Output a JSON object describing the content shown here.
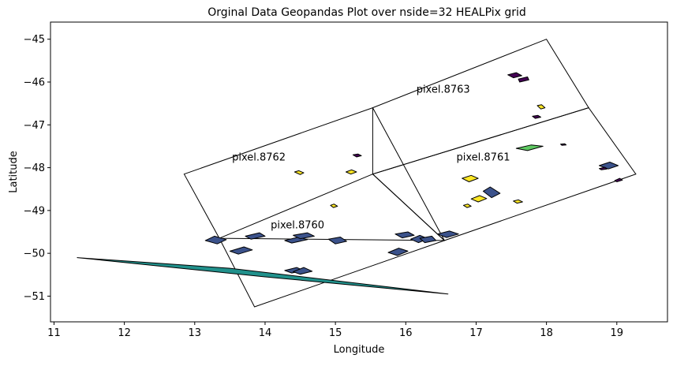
{
  "chart_data": {
    "type": "map",
    "title": "Orginal Data Geopandas Plot over nside=32 HEALPix  grid",
    "xlabel": "Longitude",
    "ylabel": "Latitude",
    "xlim": [
      10.95,
      19.72
    ],
    "ylim": [
      -51.6,
      -44.6
    ],
    "xticks": [
      11,
      12,
      13,
      14,
      15,
      16,
      17,
      18,
      19
    ],
    "yticks": [
      -45,
      -46,
      -47,
      -48,
      -49,
      -50,
      -51
    ],
    "grid": false,
    "colors": {
      "purple": "#440154",
      "indigo": "#3b528b",
      "teal": "#21918c",
      "green": "#5ec962",
      "yellow": "#fde725"
    },
    "pixels": [
      {
        "label": "pixel.8760",
        "label_at": [
          14.08,
          -49.42
        ],
        "outline": [
          [
            13.35,
            -49.65
          ],
          [
            15.53,
            -48.15
          ],
          [
            16.55,
            -49.7
          ],
          [
            13.85,
            -51.25
          ]
        ]
      },
      {
        "label": "pixel.8761",
        "label_at": [
          16.72,
          -47.83
        ],
        "outline": [
          [
            15.53,
            -48.15
          ],
          [
            18.6,
            -46.6
          ],
          [
            19.27,
            -48.15
          ],
          [
            16.55,
            -49.7
          ]
        ]
      },
      {
        "label": "pixel.8762",
        "label_at": [
          13.53,
          -47.83
        ],
        "outline": [
          [
            12.85,
            -48.15
          ],
          [
            15.53,
            -46.6
          ],
          [
            16.55,
            -49.7
          ],
          [
            13.35,
            -49.65
          ]
        ]
      },
      {
        "label": "pixel.8763",
        "label_at": [
          16.15,
          -46.25
        ],
        "outline": [
          [
            15.53,
            -46.6
          ],
          [
            18.0,
            -45.0
          ],
          [
            18.6,
            -46.6
          ],
          [
            15.53,
            -48.15
          ]
        ]
      }
    ],
    "features": [
      {
        "color": "teal",
        "points": [
          [
            11.33,
            -50.1
          ],
          [
            13.5,
            -50.35
          ],
          [
            16.6,
            -50.95
          ],
          [
            14.0,
            -50.55
          ]
        ]
      },
      {
        "color": "indigo",
        "points": [
          [
            13.15,
            -49.7
          ],
          [
            13.28,
            -49.6
          ],
          [
            13.45,
            -49.68
          ],
          [
            13.32,
            -49.78
          ]
        ]
      },
      {
        "color": "indigo",
        "points": [
          [
            13.5,
            -49.95
          ],
          [
            13.7,
            -49.85
          ],
          [
            13.82,
            -49.92
          ],
          [
            13.62,
            -50.02
          ]
        ]
      },
      {
        "color": "indigo",
        "points": [
          [
            13.72,
            -49.6
          ],
          [
            13.92,
            -49.52
          ],
          [
            14.0,
            -49.6
          ],
          [
            13.8,
            -49.67
          ]
        ]
      },
      {
        "color": "indigo",
        "points": [
          [
            14.28,
            -49.7
          ],
          [
            14.48,
            -49.62
          ],
          [
            14.6,
            -49.68
          ],
          [
            14.38,
            -49.76
          ]
        ]
      },
      {
        "color": "indigo",
        "points": [
          [
            14.4,
            -49.58
          ],
          [
            14.6,
            -49.52
          ],
          [
            14.7,
            -49.6
          ],
          [
            14.5,
            -49.66
          ]
        ]
      },
      {
        "color": "indigo",
        "points": [
          [
            14.28,
            -50.4
          ],
          [
            14.45,
            -50.33
          ],
          [
            14.55,
            -50.4
          ],
          [
            14.38,
            -50.46
          ]
        ]
      },
      {
        "color": "indigo",
        "points": [
          [
            14.4,
            -50.43
          ],
          [
            14.55,
            -50.33
          ],
          [
            14.67,
            -50.42
          ],
          [
            14.5,
            -50.49
          ]
        ]
      },
      {
        "color": "indigo",
        "points": [
          [
            14.9,
            -49.67
          ],
          [
            15.07,
            -49.62
          ],
          [
            15.16,
            -49.72
          ],
          [
            15.0,
            -49.78
          ]
        ]
      },
      {
        "color": "indigo",
        "points": [
          [
            15.75,
            -49.98
          ],
          [
            15.9,
            -49.88
          ],
          [
            16.03,
            -49.95
          ],
          [
            15.88,
            -50.05
          ]
        ]
      },
      {
        "color": "indigo",
        "points": [
          [
            15.85,
            -49.55
          ],
          [
            16.03,
            -49.5
          ],
          [
            16.12,
            -49.58
          ],
          [
            15.95,
            -49.64
          ]
        ]
      },
      {
        "color": "indigo",
        "points": [
          [
            16.07,
            -49.67
          ],
          [
            16.2,
            -49.58
          ],
          [
            16.32,
            -49.66
          ],
          [
            16.18,
            -49.75
          ]
        ]
      },
      {
        "color": "indigo",
        "points": [
          [
            16.2,
            -49.65
          ],
          [
            16.37,
            -49.6
          ],
          [
            16.43,
            -49.7
          ],
          [
            16.27,
            -49.75
          ]
        ]
      },
      {
        "color": "indigo",
        "points": [
          [
            16.45,
            -49.55
          ],
          [
            16.62,
            -49.48
          ],
          [
            16.75,
            -49.55
          ],
          [
            16.58,
            -49.63
          ]
        ]
      },
      {
        "color": "indigo",
        "points": [
          [
            17.1,
            -48.55
          ],
          [
            17.2,
            -48.45
          ],
          [
            17.34,
            -48.6
          ],
          [
            17.22,
            -48.7
          ]
        ]
      },
      {
        "color": "indigo",
        "points": [
          [
            18.75,
            -47.95
          ],
          [
            18.9,
            -47.87
          ],
          [
            19.02,
            -47.95
          ],
          [
            18.88,
            -48.03
          ]
        ]
      },
      {
        "color": "purple",
        "points": [
          [
            17.45,
            -45.83
          ],
          [
            17.57,
            -45.78
          ],
          [
            17.65,
            -45.85
          ],
          [
            17.53,
            -45.9
          ]
        ]
      },
      {
        "color": "purple",
        "points": [
          [
            17.6,
            -45.93
          ],
          [
            17.73,
            -45.88
          ],
          [
            17.75,
            -45.95
          ],
          [
            17.62,
            -46.0
          ]
        ]
      },
      {
        "color": "purple",
        "points": [
          [
            17.8,
            -46.8
          ],
          [
            17.88,
            -46.78
          ],
          [
            17.92,
            -46.82
          ],
          [
            17.84,
            -46.85
          ]
        ]
      },
      {
        "color": "purple",
        "points": [
          [
            15.25,
            -47.7
          ],
          [
            15.32,
            -47.68
          ],
          [
            15.37,
            -47.72
          ],
          [
            15.3,
            -47.75
          ]
        ]
      },
      {
        "color": "purple",
        "points": [
          [
            18.75,
            -48.02
          ],
          [
            18.83,
            -47.99
          ],
          [
            18.86,
            -48.03
          ],
          [
            18.78,
            -48.05
          ]
        ]
      },
      {
        "color": "purple",
        "points": [
          [
            18.97,
            -48.3
          ],
          [
            19.04,
            -48.25
          ],
          [
            19.08,
            -48.29
          ],
          [
            19.0,
            -48.33
          ]
        ]
      },
      {
        "color": "purple",
        "points": [
          [
            18.2,
            -47.45
          ],
          [
            18.26,
            -47.44
          ],
          [
            18.28,
            -47.47
          ],
          [
            18.22,
            -47.48
          ]
        ]
      },
      {
        "color": "green",
        "points": [
          [
            17.57,
            -47.55
          ],
          [
            17.78,
            -47.47
          ],
          [
            17.95,
            -47.5
          ],
          [
            17.73,
            -47.6
          ]
        ]
      },
      {
        "color": "yellow",
        "points": [
          [
            16.8,
            -48.25
          ],
          [
            16.93,
            -48.18
          ],
          [
            17.03,
            -48.25
          ],
          [
            16.9,
            -48.33
          ]
        ]
      },
      {
        "color": "yellow",
        "points": [
          [
            16.93,
            -48.73
          ],
          [
            17.05,
            -48.65
          ],
          [
            17.15,
            -48.72
          ],
          [
            17.03,
            -48.8
          ]
        ]
      },
      {
        "color": "yellow",
        "points": [
          [
            16.82,
            -48.88
          ],
          [
            16.88,
            -48.85
          ],
          [
            16.93,
            -48.9
          ],
          [
            16.87,
            -48.93
          ]
        ]
      },
      {
        "color": "yellow",
        "points": [
          [
            17.53,
            -48.78
          ],
          [
            17.6,
            -48.75
          ],
          [
            17.66,
            -48.8
          ],
          [
            17.58,
            -48.83
          ]
        ]
      },
      {
        "color": "yellow",
        "points": [
          [
            17.87,
            -46.55
          ],
          [
            17.93,
            -46.53
          ],
          [
            17.98,
            -46.6
          ],
          [
            17.92,
            -46.63
          ]
        ]
      },
      {
        "color": "yellow",
        "points": [
          [
            15.15,
            -48.1
          ],
          [
            15.23,
            -48.05
          ],
          [
            15.3,
            -48.1
          ],
          [
            15.22,
            -48.15
          ]
        ]
      },
      {
        "color": "yellow",
        "points": [
          [
            14.93,
            -48.88
          ],
          [
            14.98,
            -48.85
          ],
          [
            15.03,
            -48.9
          ],
          [
            14.97,
            -48.93
          ]
        ]
      },
      {
        "color": "yellow",
        "points": [
          [
            14.42,
            -48.1
          ],
          [
            14.48,
            -48.07
          ],
          [
            14.55,
            -48.12
          ],
          [
            14.5,
            -48.16
          ]
        ]
      }
    ]
  }
}
